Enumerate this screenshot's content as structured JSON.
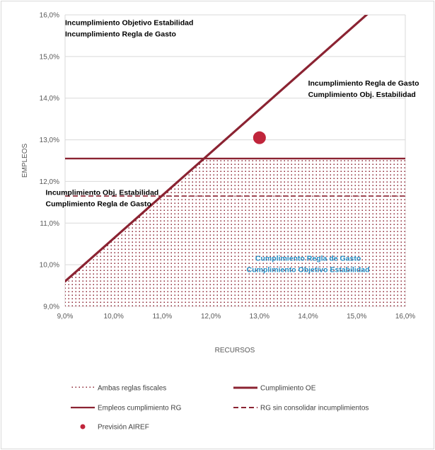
{
  "chart_data": {
    "type": "line",
    "xlabel": "RECURSOS",
    "ylabel": "EMPLEOS",
    "xlim": [
      9.0,
      16.0
    ],
    "ylim": [
      9.0,
      16.0
    ],
    "x_ticks": [
      "9,0%",
      "10,0%",
      "11,0%",
      "12,0%",
      "13,0%",
      "14,0%",
      "15,0%",
      "16,0%"
    ],
    "y_ticks": [
      "9,0%",
      "10,0%",
      "11,0%",
      "12,0%",
      "13,0%",
      "14,0%",
      "15,0%",
      "16,0%"
    ],
    "grid": "horizontal",
    "legend_position": "bottom",
    "series": [
      {
        "name": "Ambas reglas fiscales",
        "kind": "dotted-area",
        "x": [
          9.0,
          16.0
        ],
        "y_top": [
          12.55,
          12.55
        ],
        "y_bottom": 9.0,
        "bounded_by": "Cumplimiento OE",
        "color": "#9b2335"
      },
      {
        "name": "Cumplimiento OE",
        "kind": "line",
        "x": [
          9.0,
          15.25
        ],
        "y": [
          9.6,
          16.05
        ],
        "color": "#8b2332"
      },
      {
        "name": "Empleos cumplimiento RG",
        "kind": "hline",
        "x": [
          9.0,
          16.0
        ],
        "y": [
          12.55,
          12.55
        ],
        "color": "#8b2332"
      },
      {
        "name": "RG sin consolidar incumplimientos",
        "kind": "dashed-hline",
        "x": [
          9.0,
          16.0
        ],
        "y": [
          11.65,
          11.65
        ],
        "color": "#8b2332"
      },
      {
        "name": "Previsión AIREF",
        "kind": "point",
        "x": [
          13.0
        ],
        "y": [
          13.05
        ],
        "color": "#c0253b"
      }
    ],
    "annotations": [
      {
        "lines": [
          "Incumplimiento Objetivo Estabilidad",
          "Incumplimiento Regla de Gasto"
        ],
        "x": 9.0,
        "y": 15.75,
        "anchor": "start",
        "color": "#000000"
      },
      {
        "lines": [
          "Incumplimiento Regla de Gasto",
          "Cumplimiento Obj. Estabilidad"
        ],
        "x": 14.0,
        "y": 14.3,
        "anchor": "start",
        "color": "#000000"
      },
      {
        "lines": [
          "Incumplimiento Obj. Estabilidad",
          "Cumplimiento Regla de Gasto"
        ],
        "x": 8.6,
        "y": 11.68,
        "anchor": "start",
        "color": "#000000"
      },
      {
        "lines": [
          "Cumplimiento Regla de Gasto",
          "Cumplimiento Objetivo Estabilidad"
        ],
        "x": 14.0,
        "y": 10.1,
        "anchor": "middle",
        "color": "#1e8bc3"
      }
    ]
  }
}
